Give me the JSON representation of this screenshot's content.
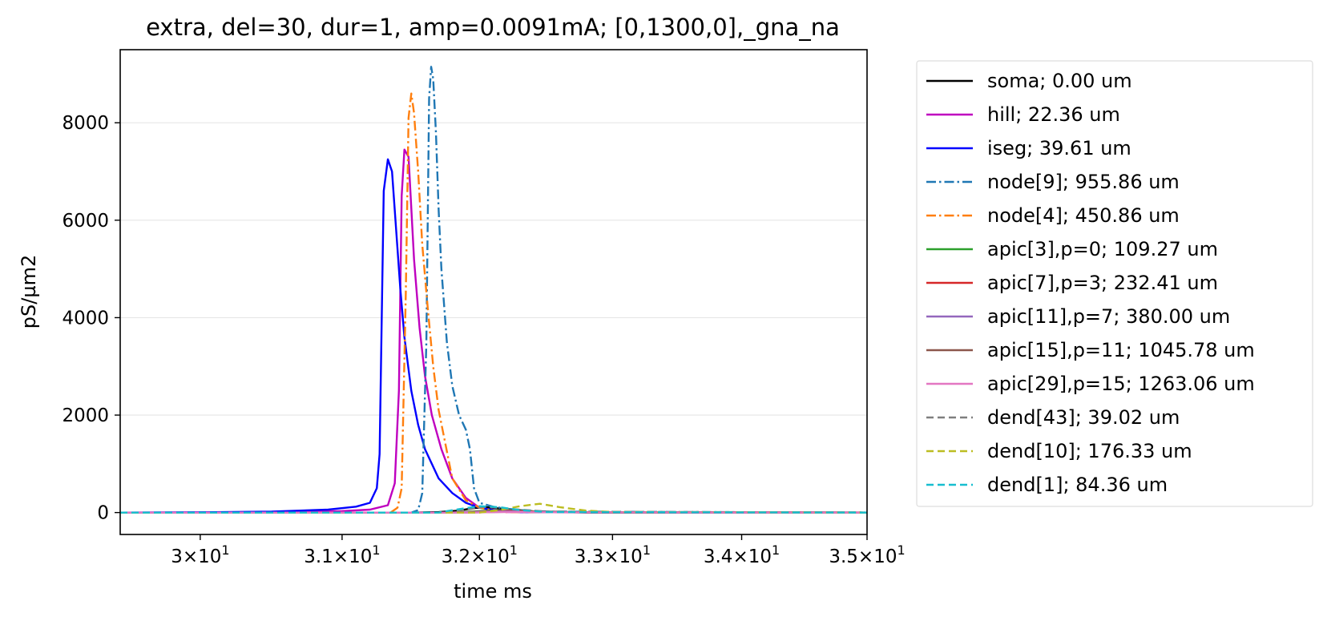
{
  "chart_data": {
    "type": "line",
    "title": "extra, del=30, dur=1, amp=0.0091mA; [0,1300,0],_gna_na",
    "xlabel": "time ms",
    "ylabel": "pS/µm2",
    "xscale": "log",
    "xlim": [
      29.45,
      35.0
    ],
    "ylim": [
      -450,
      9500
    ],
    "grid": "horizontal",
    "legend_position": "outside-right",
    "xticks": [
      {
        "value": 30,
        "mantissa": "3",
        "exp": "1"
      },
      {
        "value": 31,
        "mantissa": "3.1",
        "exp": "1"
      },
      {
        "value": 32,
        "mantissa": "3.2",
        "exp": "1"
      },
      {
        "value": 33,
        "mantissa": "3.3",
        "exp": "1"
      },
      {
        "value": 34,
        "mantissa": "3.4",
        "exp": "1"
      },
      {
        "value": 35,
        "mantissa": "3.5",
        "exp": "1"
      }
    ],
    "yticks": [
      {
        "value": 0,
        "label": "0"
      },
      {
        "value": 2000,
        "label": "2000"
      },
      {
        "value": 4000,
        "label": "4000"
      },
      {
        "value": 6000,
        "label": "6000"
      },
      {
        "value": 8000,
        "label": "8000"
      }
    ],
    "series": [
      {
        "name": "soma; 0.00 um",
        "color": "#000000",
        "dash": "solid",
        "x": [
          29.45,
          31.5,
          31.7,
          31.85,
          31.95,
          32.05,
          32.2,
          32.4,
          32.8,
          35.0
        ],
        "y": [
          0,
          0,
          10,
          40,
          90,
          110,
          70,
          25,
          0,
          0
        ]
      },
      {
        "name": "hill; 22.36 um",
        "color": "#bf00bf",
        "dash": "solid",
        "x": [
          29.45,
          30.5,
          31.0,
          31.2,
          31.33,
          31.38,
          31.41,
          31.43,
          31.45,
          31.48,
          31.52,
          31.56,
          31.6,
          31.65,
          31.72,
          31.8,
          31.9,
          32.0,
          32.2,
          35.0
        ],
        "y": [
          0,
          10,
          30,
          60,
          150,
          600,
          2500,
          6500,
          7450,
          7300,
          5200,
          3800,
          2800,
          2000,
          1300,
          700,
          300,
          100,
          10,
          0
        ]
      },
      {
        "name": "iseg; 39.61 um",
        "color": "#0000ff",
        "dash": "solid",
        "x": [
          29.45,
          30.0,
          30.5,
          30.9,
          31.1,
          31.2,
          31.25,
          31.27,
          31.3,
          31.33,
          31.36,
          31.39,
          31.42,
          31.45,
          31.5,
          31.55,
          31.6,
          31.7,
          31.8,
          31.9,
          32.0,
          32.1,
          32.3,
          35.0
        ],
        "y": [
          0,
          5,
          20,
          60,
          120,
          200,
          500,
          1200,
          6600,
          7250,
          7000,
          5800,
          4600,
          3600,
          2500,
          1800,
          1300,
          700,
          400,
          200,
          100,
          50,
          10,
          0
        ]
      },
      {
        "name": "node[9]; 955.86 um",
        "color": "#1f77b4",
        "dash": "dashdot",
        "x": [
          29.45,
          31.5,
          31.55,
          31.58,
          31.61,
          31.63,
          31.645,
          31.66,
          31.68,
          31.7,
          31.72,
          31.76,
          31.8,
          31.85,
          31.9,
          31.93,
          31.96,
          32.0,
          32.1,
          32.2,
          32.3,
          32.5,
          35.0
        ],
        "y": [
          0,
          0,
          50,
          400,
          3500,
          8500,
          9150,
          8900,
          7800,
          6200,
          5000,
          3500,
          2600,
          2000,
          1700,
          1300,
          500,
          200,
          120,
          80,
          50,
          20,
          0
        ]
      },
      {
        "name": "node[4]; 450.86 um",
        "color": "#ff7f0e",
        "dash": "dashdot",
        "x": [
          29.45,
          31.35,
          31.4,
          31.43,
          31.46,
          31.48,
          31.5,
          31.52,
          31.55,
          31.58,
          31.62,
          31.66,
          31.7,
          31.75,
          31.8,
          31.9,
          32.0,
          32.1,
          32.2,
          35.0
        ],
        "y": [
          0,
          0,
          100,
          500,
          4500,
          8100,
          8600,
          8200,
          7000,
          5500,
          4200,
          3000,
          2100,
          1400,
          700,
          250,
          100,
          40,
          10,
          0
        ]
      },
      {
        "name": "apic[3],p=0; 109.27 um",
        "color": "#2ca02c",
        "dash": "solid",
        "x": [
          29.45,
          31.8,
          32.0,
          32.2,
          32.5,
          35.0
        ],
        "y": [
          0,
          0,
          30,
          50,
          10,
          0
        ]
      },
      {
        "name": "apic[7],p=3; 232.41 um",
        "color": "#d62728",
        "dash": "solid",
        "x": [
          29.45,
          31.8,
          32.0,
          32.2,
          32.5,
          35.0
        ],
        "y": [
          0,
          0,
          20,
          40,
          10,
          0
        ]
      },
      {
        "name": "apic[11],p=7; 380.00 um",
        "color": "#9467bd",
        "dash": "solid",
        "x": [
          29.45,
          31.8,
          32.0,
          32.2,
          32.5,
          35.0
        ],
        "y": [
          0,
          0,
          15,
          30,
          5,
          0
        ]
      },
      {
        "name": "apic[15],p=11; 1045.78 um",
        "color": "#8c564b",
        "dash": "solid",
        "x": [
          29.45,
          31.9,
          32.1,
          32.3,
          32.6,
          35.0
        ],
        "y": [
          0,
          0,
          10,
          20,
          5,
          0
        ]
      },
      {
        "name": "apic[29],p=15; 1263.06 um",
        "color": "#e377c2",
        "dash": "solid",
        "x": [
          29.45,
          31.9,
          32.1,
          32.3,
          32.6,
          35.0
        ],
        "y": [
          0,
          0,
          8,
          15,
          4,
          0
        ]
      },
      {
        "name": "dend[43]; 39.02 um",
        "color": "#7f7f7f",
        "dash": "dashed",
        "x": [
          29.45,
          31.7,
          31.9,
          32.05,
          32.2,
          32.5,
          35.0
        ],
        "y": [
          0,
          0,
          60,
          120,
          80,
          20,
          0
        ]
      },
      {
        "name": "dend[10]; 176.33 um",
        "color": "#bcbd22",
        "dash": "dashed",
        "x": [
          29.45,
          32.0,
          32.15,
          32.3,
          32.45,
          32.6,
          32.8,
          33.0,
          35.0
        ],
        "y": [
          0,
          0,
          50,
          130,
          180,
          110,
          40,
          10,
          0
        ]
      },
      {
        "name": "dend[1]; 84.36 um",
        "color": "#17becf",
        "dash": "dashed",
        "x": [
          29.45,
          31.7,
          31.85,
          32.0,
          32.15,
          32.3,
          32.5,
          35.0
        ],
        "y": [
          0,
          0,
          70,
          130,
          110,
          50,
          10,
          0
        ]
      }
    ]
  }
}
